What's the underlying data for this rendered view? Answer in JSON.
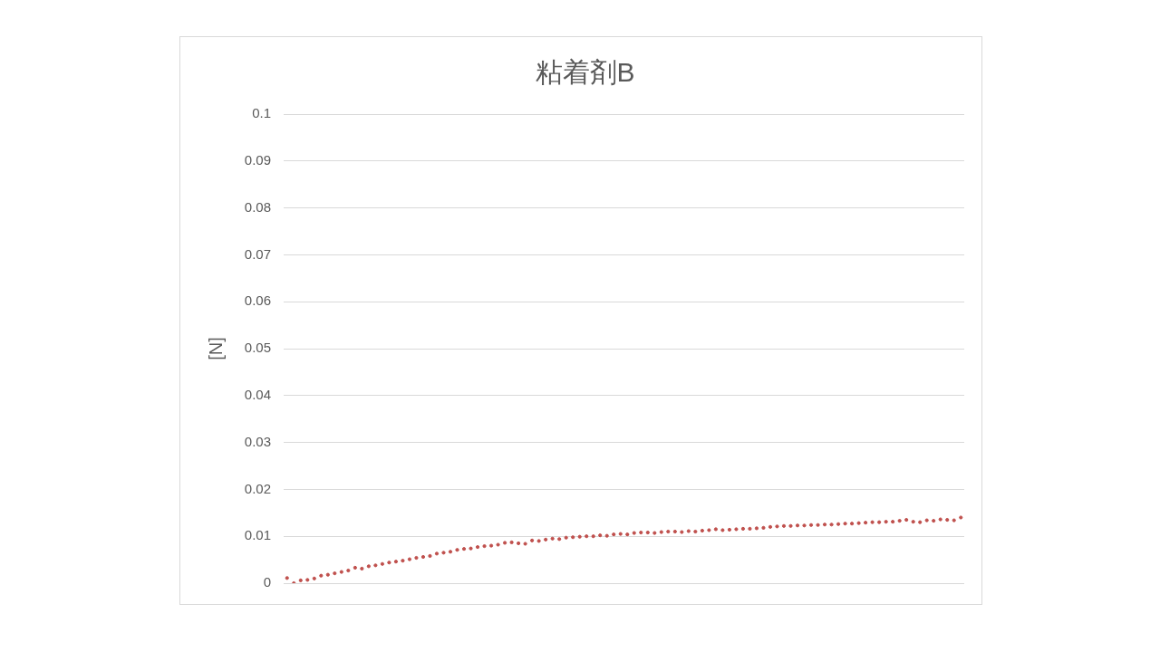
{
  "chart_data": {
    "type": "scatter",
    "title": "粘着剤B",
    "ylabel": "[N]",
    "categories": [
      null,
      null,
      null,
      null,
      null,
      null,
      null,
      null,
      null,
      null,
      null,
      null,
      null,
      null,
      null,
      null,
      null,
      null,
      null,
      null,
      null,
      null,
      null,
      null,
      null,
      null,
      null,
      null,
      null,
      null,
      null,
      null,
      null,
      null,
      null,
      null,
      null,
      null,
      null,
      null,
      null,
      null,
      null,
      null,
      null,
      null,
      null,
      null,
      null,
      null,
      null,
      null,
      null,
      null,
      null,
      null,
      null,
      null,
      null,
      null,
      null,
      null,
      null,
      null,
      null,
      null,
      null,
      null,
      null,
      null,
      null,
      null,
      null,
      null,
      null,
      null,
      null,
      null,
      null,
      null,
      null,
      null,
      null,
      null,
      null,
      null,
      null,
      null,
      null,
      null,
      null,
      null,
      null,
      null,
      null,
      null,
      null,
      null,
      null,
      null
    ],
    "series": [
      {
        "color": "#c0504d",
        "values": [
          0.0011,
          0.0,
          0.0006,
          0.0007,
          0.001,
          0.0016,
          0.0018,
          0.0021,
          0.0024,
          0.0027,
          0.0033,
          0.0031,
          0.0036,
          0.0038,
          0.0041,
          0.0044,
          0.0046,
          0.0048,
          0.0051,
          0.0054,
          0.0056,
          0.0058,
          0.0063,
          0.0065,
          0.0067,
          0.0071,
          0.0073,
          0.0074,
          0.0077,
          0.0079,
          0.008,
          0.0082,
          0.0086,
          0.0087,
          0.0085,
          0.0084,
          0.0091,
          0.009,
          0.0093,
          0.0095,
          0.0094,
          0.0097,
          0.0098,
          0.0099,
          0.01,
          0.01,
          0.0102,
          0.0101,
          0.0104,
          0.0105,
          0.0104,
          0.0107,
          0.0108,
          0.0108,
          0.0107,
          0.0109,
          0.011,
          0.011,
          0.0109,
          0.0111,
          0.011,
          0.0112,
          0.0113,
          0.0115,
          0.0113,
          0.0114,
          0.0115,
          0.0116,
          0.0116,
          0.0117,
          0.0118,
          0.012,
          0.0121,
          0.0122,
          0.0122,
          0.0123,
          0.0123,
          0.0124,
          0.0124,
          0.0125,
          0.0125,
          0.0126,
          0.0127,
          0.0127,
          0.0128,
          0.0129,
          0.013,
          0.013,
          0.0131,
          0.0131,
          0.0133,
          0.0135,
          0.0131,
          0.013,
          0.0134,
          0.0133,
          0.0136,
          0.0135,
          0.0134,
          0.014
        ]
      }
    ],
    "ylim": [
      0,
      0.1
    ],
    "yticks": [
      0,
      0.01,
      0.02,
      0.03,
      0.04,
      0.05,
      0.06,
      0.07,
      0.08,
      0.09,
      0.1
    ],
    "grid": "y",
    "marker": "circle",
    "tick_labels": "y"
  }
}
